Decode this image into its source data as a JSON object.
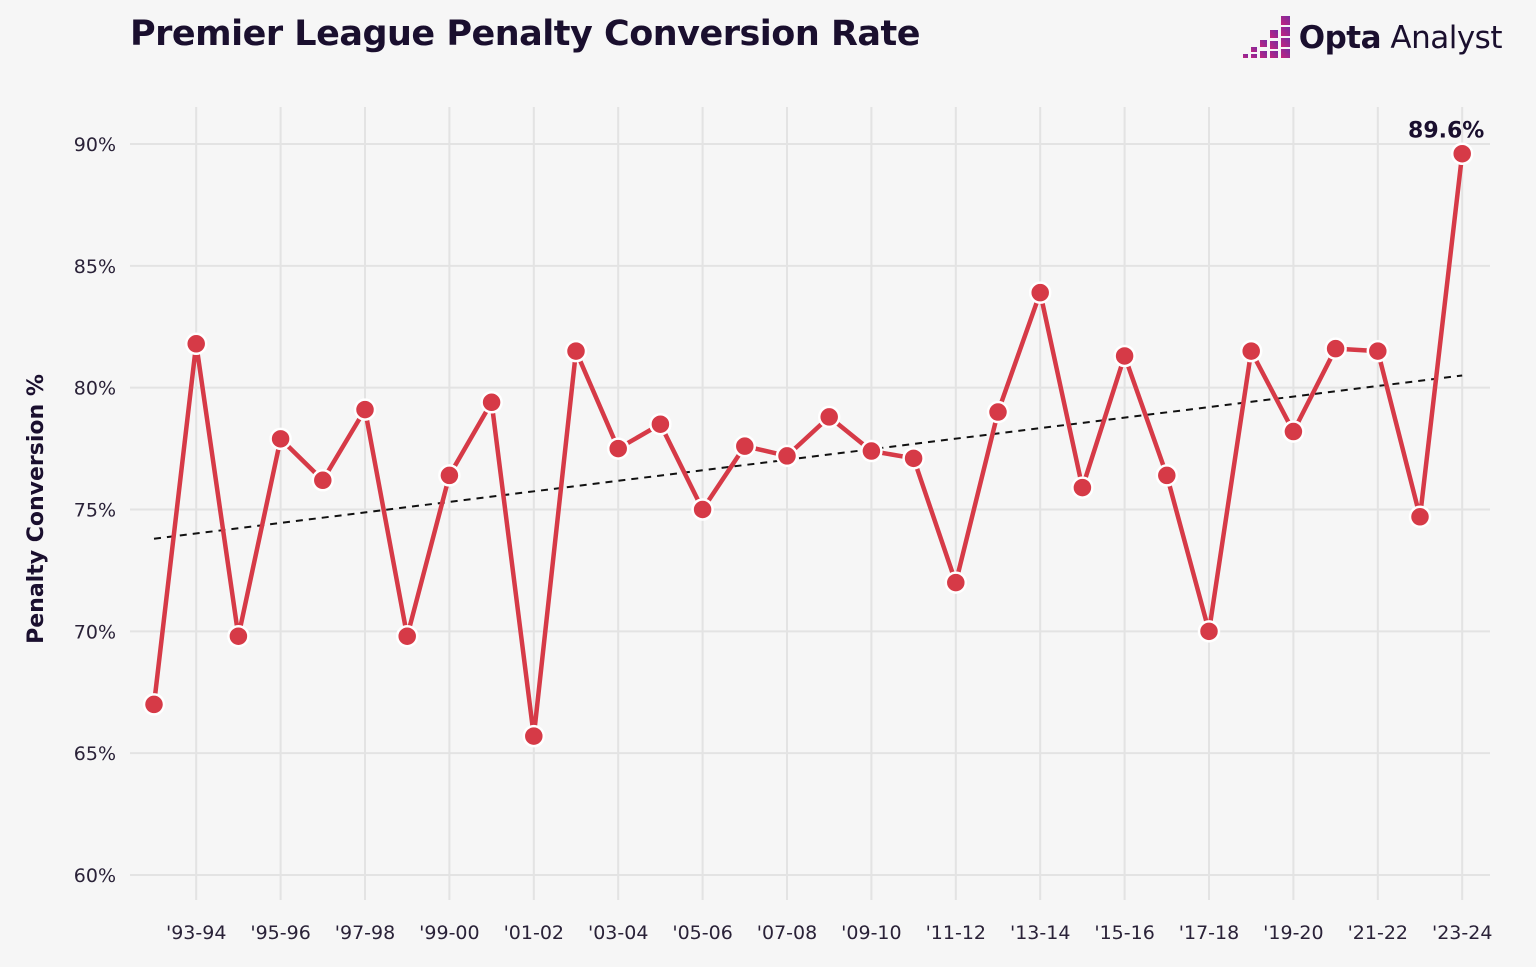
{
  "header": {
    "title": "Premier League Penalty Conversion Rate",
    "brand_bold": "Opta",
    "brand_light": "Analyst",
    "brand_logo_icon": "opta-stairs-logo-icon"
  },
  "colors": {
    "series": "#d63a47",
    "trend": "#111111",
    "grid": "#e3e3e3",
    "background": "#f6f6f6",
    "brand_accent": "#c4247d"
  },
  "chart_data": {
    "type": "line",
    "ylabel": "Penalty Conversion %",
    "ylim": [
      60,
      90
    ],
    "yticks": [
      60,
      65,
      70,
      75,
      80,
      85,
      90
    ],
    "ytick_labels": [
      "60%",
      "65%",
      "70%",
      "75%",
      "80%",
      "85%",
      "90%"
    ],
    "xtick_labels": [
      "'93-94",
      "'95-96",
      "'97-98",
      "'99-00",
      "'01-02",
      "'03-04",
      "'05-06",
      "'07-08",
      "'09-10",
      "'11-12",
      "'13-14",
      "'15-16",
      "'17-18",
      "'19-20",
      "'21-22",
      "'23-24"
    ],
    "x": [
      "92-93",
      "93-94",
      "94-95",
      "95-96",
      "96-97",
      "97-98",
      "98-99",
      "99-00",
      "00-01",
      "01-02",
      "02-03",
      "03-04",
      "04-05",
      "05-06",
      "06-07",
      "07-08",
      "08-09",
      "09-10",
      "10-11",
      "11-12",
      "12-13",
      "13-14",
      "14-15",
      "15-16",
      "16-17",
      "17-18",
      "18-19",
      "19-20",
      "20-21",
      "21-22",
      "22-23",
      "23-24"
    ],
    "series": [
      {
        "values": [
          67.0,
          81.8,
          69.8,
          77.9,
          76.2,
          79.1,
          69.8,
          76.4,
          79.4,
          65.7,
          81.5,
          77.5,
          78.5,
          75.0,
          77.6,
          77.2,
          78.8,
          77.4,
          77.1,
          72.0,
          79.0,
          83.9,
          75.9,
          81.3,
          76.4,
          70.0,
          81.5,
          78.2,
          81.6,
          81.5,
          74.7,
          89.6
        ]
      }
    ],
    "trendline": {
      "start": 73.8,
      "end": 80.5,
      "style": "dashed"
    },
    "annotation": {
      "label": "89.6%",
      "point": "23-24"
    },
    "grid": true
  }
}
